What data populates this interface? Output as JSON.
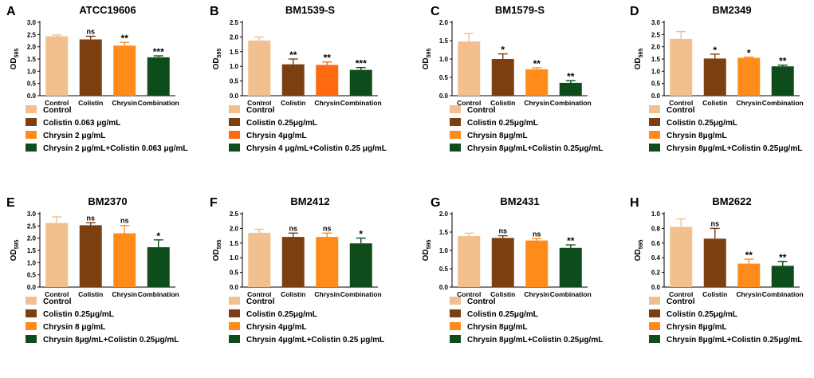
{
  "colors": {
    "control": "#F2BF8E",
    "colistin": "#7B3F12",
    "chrysin": "#FF8C1A",
    "chrysin_alt": "#FF6A10",
    "combination": "#0F4C1C"
  },
  "ylabel": "OD",
  "ylabel_sub": "595",
  "chart_data": [
    {
      "panel": "A",
      "type": "bar",
      "title": "ATCC19606",
      "categories": [
        "Control",
        "Colistin",
        "Chrysin",
        "Combination"
      ],
      "values": [
        2.43,
        2.3,
        2.05,
        1.57
      ],
      "errors": [
        0.05,
        0.13,
        0.13,
        0.06
      ],
      "significance": [
        "",
        "ns",
        "**",
        "***"
      ],
      "ylim": [
        0,
        3.0
      ],
      "ytick_labels": [
        "0.0",
        "0.5",
        "1.0",
        "1.5",
        "2.0",
        "2.5",
        "3.0"
      ],
      "legend": [
        "Control",
        "Colistin 0.063 μg/mL",
        "Chrysin 2 μg/mL",
        "Chrysin 2 μg/mL+Colistin 0.063 μg/mL"
      ],
      "chrysin_color": "chrysin"
    },
    {
      "panel": "B",
      "type": "bar",
      "title": "BM1539-S",
      "categories": [
        "Control",
        "Colistin",
        "Chrysin",
        "Combination"
      ],
      "values": [
        1.88,
        1.07,
        1.05,
        0.88
      ],
      "errors": [
        0.12,
        0.18,
        0.1,
        0.08
      ],
      "significance": [
        "",
        "**",
        "**",
        "***"
      ],
      "ylim": [
        0,
        2.5
      ],
      "ytick_labels": [
        "0.0",
        "0.5",
        "1.0",
        "1.5",
        "2.0",
        "2.5"
      ],
      "legend": [
        "Control",
        "Colistin 0.25μg/mL",
        "Chrysin 4μg/mL",
        "Chrysin 4 μg/mL+Colistin 0.25 μg/mL"
      ],
      "chrysin_color": "chrysin_alt"
    },
    {
      "panel": "C",
      "type": "bar",
      "title": "BM1579-S",
      "categories": [
        "Control",
        "Colistin",
        "Chrysin",
        "Combination"
      ],
      "values": [
        1.48,
        1.0,
        0.72,
        0.35
      ],
      "errors": [
        0.22,
        0.14,
        0.04,
        0.06
      ],
      "significance": [
        "",
        "*",
        "**",
        "**"
      ],
      "ylim": [
        0,
        2.0
      ],
      "ytick_labels": [
        "0.0",
        "0.5",
        "1.0",
        "1.5",
        "2.0"
      ],
      "legend": [
        "Control",
        "Colistin 0.25μg/mL",
        "Chrysin 8μg/mL",
        "Chrysin 8μg/mL+Colistin 0.25μg/mL"
      ],
      "chrysin_color": "chrysin"
    },
    {
      "panel": "D",
      "type": "bar",
      "title": "BM2349",
      "categories": [
        "Control",
        "Colistin",
        "Chrysin",
        "Combination"
      ],
      "values": [
        2.32,
        1.52,
        1.55,
        1.2
      ],
      "errors": [
        0.3,
        0.18,
        0.03,
        0.05
      ],
      "significance": [
        "",
        "*",
        "*",
        "**"
      ],
      "ylim": [
        0,
        3.0
      ],
      "ytick_labels": [
        "0.0",
        "0.5",
        "1.0",
        "1.5",
        "2.0",
        "2.5",
        "3.0"
      ],
      "legend": [
        "Control",
        "Colistin 0.25μg/mL",
        "Chrysin 8μg/mL",
        "Chrysin 8μg/mL+Colistin 0.25μg/mL"
      ],
      "chrysin_color": "chrysin"
    },
    {
      "panel": "E",
      "type": "bar",
      "title": "BM2370",
      "categories": [
        "Control",
        "Colistin",
        "Chrysin",
        "Combination"
      ],
      "values": [
        2.62,
        2.53,
        2.2,
        1.63
      ],
      "errors": [
        0.25,
        0.1,
        0.32,
        0.3
      ],
      "significance": [
        "",
        "ns",
        "ns",
        "*"
      ],
      "ylim": [
        0,
        3.0
      ],
      "ytick_labels": [
        "0.0",
        "0.5",
        "1.0",
        "1.5",
        "2.0",
        "2.5",
        "3.0"
      ],
      "legend": [
        "Control",
        "Colistin 0.25μg/mL",
        "Chrysin 8 μg/mL",
        "Chrysin 8μg/mL+Colistin 0.25μg/mL"
      ],
      "chrysin_color": "chrysin"
    },
    {
      "panel": "F",
      "type": "bar",
      "title": "BM2412",
      "categories": [
        "Control",
        "Colistin",
        "Chrysin",
        "Combination"
      ],
      "values": [
        1.85,
        1.71,
        1.71,
        1.49
      ],
      "errors": [
        0.12,
        0.13,
        0.13,
        0.18
      ],
      "significance": [
        "",
        "ns",
        "ns",
        "*"
      ],
      "ylim": [
        0,
        2.5
      ],
      "ytick_labels": [
        "0.0",
        "0.5",
        "1.0",
        "1.5",
        "2.0",
        "2.5"
      ],
      "legend": [
        "Control",
        "Colistin 0.25μg/mL",
        "Chrysin 4μg/mL",
        "Chrysin 4μg/mL+Colistin 0.25 μg/mL"
      ],
      "chrysin_color": "chrysin"
    },
    {
      "panel": "G",
      "type": "bar",
      "title": "BM2431",
      "categories": [
        "Control",
        "Colistin",
        "Chrysin",
        "Combination"
      ],
      "values": [
        1.39,
        1.34,
        1.27,
        1.07
      ],
      "errors": [
        0.08,
        0.06,
        0.05,
        0.08
      ],
      "significance": [
        "",
        "ns",
        "ns",
        "**"
      ],
      "ylim": [
        0,
        2.0
      ],
      "ytick_labels": [
        "0.0",
        "0.5",
        "1.0",
        "1.5",
        "2.0"
      ],
      "legend": [
        "Control",
        "Colistin 0.25μg/mL",
        "Chrysin 8μg/mL",
        "Chrysin 8μg/mL+Colistin 0.25μg/mL"
      ],
      "chrysin_color": "chrysin"
    },
    {
      "panel": "H",
      "type": "bar",
      "title": "BM2622",
      "categories": [
        "Control",
        "Colistin",
        "Chrysin",
        "Combination"
      ],
      "values": [
        0.82,
        0.66,
        0.32,
        0.29
      ],
      "errors": [
        0.11,
        0.14,
        0.06,
        0.06
      ],
      "significance": [
        "",
        "ns",
        "**",
        "**"
      ],
      "ylim": [
        0,
        1.0
      ],
      "ytick_labels": [
        "0.0",
        "0.2",
        "0.4",
        "0.6",
        "0.8",
        "1.0"
      ],
      "legend": [
        "Control",
        "Colistin 0.25μg/mL",
        "Chrysin 8μg/mL",
        "Chrysin 8μg/mL+Colistin 0.25μg/mL"
      ],
      "chrysin_color": "chrysin"
    }
  ]
}
